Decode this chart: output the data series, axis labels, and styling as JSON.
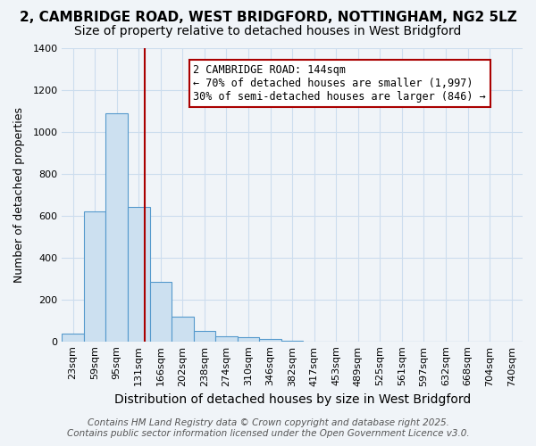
{
  "title1": "2, CAMBRIDGE ROAD, WEST BRIDGFORD, NOTTINGHAM, NG2 5LZ",
  "title2": "Size of property relative to detached houses in West Bridgford",
  "xlabel": "Distribution of detached houses by size in West Bridgford",
  "ylabel": "Number of detached properties",
  "bin_labels": [
    "23sqm",
    "59sqm",
    "95sqm",
    "131sqm",
    "166sqm",
    "202sqm",
    "238sqm",
    "274sqm",
    "310sqm",
    "346sqm",
    "382sqm",
    "417sqm",
    "453sqm",
    "489sqm",
    "525sqm",
    "561sqm",
    "597sqm",
    "632sqm",
    "668sqm",
    "704sqm",
    "740sqm"
  ],
  "bar_values": [
    35,
    620,
    1090,
    640,
    285,
    120,
    48,
    25,
    20,
    10,
    3,
    0,
    0,
    0,
    0,
    0,
    0,
    0,
    0,
    0,
    0
  ],
  "bar_color": "#cce0f0",
  "bar_edge_color": "#5599cc",
  "vline_x": 3.27,
  "vline_color": "#aa0000",
  "annotation_text": "2 CAMBRIDGE ROAD: 144sqm\n← 70% of detached houses are smaller (1,997)\n30% of semi-detached houses are larger (846) →",
  "annotation_box_color": "#ffffff",
  "annotation_box_edge_color": "#aa0000",
  "ylim": [
    0,
    1400
  ],
  "yticks": [
    0,
    200,
    400,
    600,
    800,
    1000,
    1200,
    1400
  ],
  "grid_color": "#ccddee",
  "background_color": "#f0f4f8",
  "footer1": "Contains HM Land Registry data © Crown copyright and database right 2025.",
  "footer2": "Contains public sector information licensed under the Open Government Licence v3.0.",
  "title1_fontsize": 11,
  "title2_fontsize": 10,
  "xlabel_fontsize": 10,
  "ylabel_fontsize": 9,
  "tick_fontsize": 8,
  "footer_fontsize": 7.5,
  "annotation_fontsize": 8.5
}
